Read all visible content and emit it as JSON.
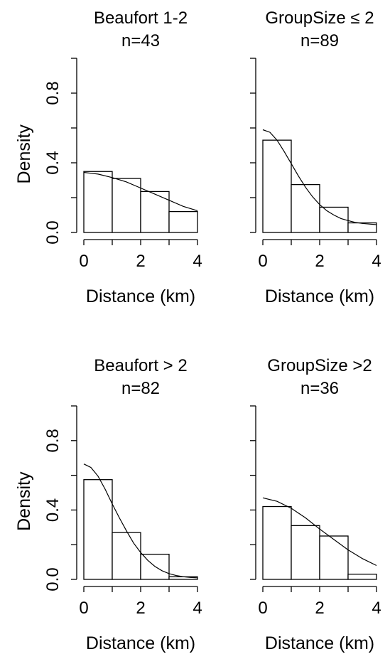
{
  "chart_data": [
    {
      "type": "bar",
      "title": "Beaufort 1-2",
      "subtitle": "n=43",
      "xlabel": "Distance (km)",
      "ylabel": "Density",
      "xlim": [
        0,
        4
      ],
      "ylim": [
        0,
        1.0
      ],
      "xticks": [
        "0",
        "2",
        "4"
      ],
      "yticks": [
        "0.0",
        "0.4",
        "0.8"
      ],
      "grid": false,
      "bins": [
        [
          0,
          1
        ],
        [
          1,
          2
        ],
        [
          2,
          3
        ],
        [
          3,
          4
        ]
      ],
      "values": [
        0.35,
        0.31,
        0.235,
        0.12
      ],
      "curve": {
        "x": [
          0,
          0.5,
          1,
          1.5,
          2,
          2.5,
          3,
          3.5,
          4
        ],
        "y": [
          0.345,
          0.335,
          0.315,
          0.29,
          0.255,
          0.22,
          0.185,
          0.15,
          0.125
        ]
      }
    },
    {
      "type": "bar",
      "title": "GroupSize ≤ 2",
      "subtitle": "n=89",
      "xlabel": "Distance (km)",
      "ylabel": "",
      "xlim": [
        0,
        4
      ],
      "ylim": [
        0,
        1.0
      ],
      "xticks": [
        "0",
        "2",
        "4"
      ],
      "yticks": [],
      "grid": false,
      "bins": [
        [
          0,
          1
        ],
        [
          1,
          2
        ],
        [
          2,
          3
        ],
        [
          3,
          4
        ]
      ],
      "values": [
        0.53,
        0.275,
        0.145,
        0.055
      ],
      "curve": {
        "x": [
          0,
          0.25,
          0.5,
          0.75,
          1,
          1.25,
          1.5,
          1.75,
          2,
          2.25,
          2.5,
          2.75,
          3,
          3.25,
          3.5,
          3.75,
          4
        ],
        "y": [
          0.59,
          0.575,
          0.53,
          0.465,
          0.395,
          0.325,
          0.26,
          0.205,
          0.16,
          0.125,
          0.1,
          0.08,
          0.068,
          0.058,
          0.052,
          0.048,
          0.045
        ]
      }
    },
    {
      "type": "bar",
      "title": "Beaufort > 2",
      "subtitle": "n=82",
      "xlabel": "Distance (km)",
      "ylabel": "Density",
      "xlim": [
        0,
        4
      ],
      "ylim": [
        0,
        1.0
      ],
      "xticks": [
        "0",
        "2",
        "4"
      ],
      "yticks": [
        "0.0",
        "0.4",
        "0.8"
      ],
      "grid": false,
      "bins": [
        [
          0,
          1
        ],
        [
          1,
          2
        ],
        [
          2,
          3
        ],
        [
          3,
          4
        ]
      ],
      "values": [
        0.575,
        0.27,
        0.145,
        0.015
      ],
      "curve": {
        "x": [
          0,
          0.25,
          0.5,
          0.75,
          1,
          1.25,
          1.5,
          1.75,
          2,
          2.25,
          2.5,
          2.75,
          3,
          3.25,
          3.5,
          3.75,
          4
        ],
        "y": [
          0.665,
          0.645,
          0.595,
          0.52,
          0.435,
          0.355,
          0.28,
          0.21,
          0.155,
          0.11,
          0.075,
          0.05,
          0.033,
          0.022,
          0.015,
          0.011,
          0.009
        ]
      }
    },
    {
      "type": "bar",
      "title": "GroupSize >2",
      "subtitle": "n=36",
      "xlabel": "Distance (km)",
      "ylabel": "",
      "xlim": [
        0,
        4
      ],
      "ylim": [
        0,
        1.0
      ],
      "xticks": [
        "0",
        "2",
        "4"
      ],
      "yticks": [],
      "grid": false,
      "bins": [
        [
          0,
          1
        ],
        [
          1,
          2
        ],
        [
          2,
          3
        ],
        [
          3,
          4
        ]
      ],
      "values": [
        0.42,
        0.31,
        0.25,
        0.03
      ],
      "curve": {
        "x": [
          0,
          0.5,
          1,
          1.5,
          2,
          2.5,
          3,
          3.5,
          4
        ],
        "y": [
          0.47,
          0.45,
          0.41,
          0.355,
          0.29,
          0.23,
          0.17,
          0.12,
          0.08
        ]
      }
    }
  ]
}
